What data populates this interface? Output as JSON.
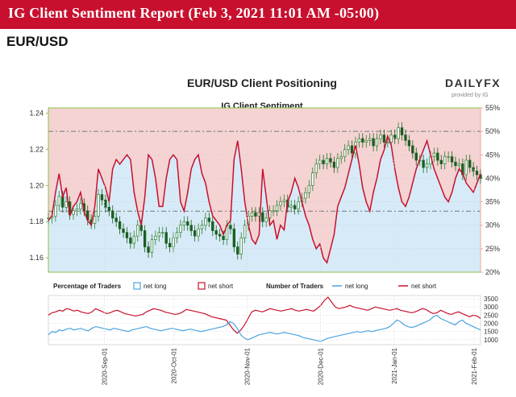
{
  "banner": {
    "title": "IG Client Sentiment Report (Feb 3, 2021 11:01 AM -05:00)",
    "color": "#c8102e"
  },
  "pair": "EUR/USD",
  "brand": {
    "logo_main": "DAILYFX",
    "logo_sub": "provided by IG"
  },
  "chart_data": [
    {
      "type": "line",
      "title": "EUR/USD Client Positioning",
      "subtitle": "IG Client Sentiment",
      "left_axis": {
        "ticks": [
          "1.24",
          "1.22",
          "1.20",
          "1.18",
          "1.16"
        ],
        "values": [
          1.24,
          1.22,
          1.2,
          1.18,
          1.16
        ],
        "range": [
          1.152,
          1.243
        ]
      },
      "right_axis": {
        "ticks": [
          "55%",
          "50%",
          "45%",
          "40%",
          "35%",
          "30%",
          "25%",
          "20%"
        ],
        "values": [
          55,
          50,
          45,
          40,
          35,
          30,
          25,
          20
        ],
        "range": [
          20,
          55
        ]
      },
      "x_ticks": [
        "2020-Sep-01",
        "2020-Oct-01",
        "2020-Nov-01",
        "2020-Dec-01",
        "2021-Jan-01",
        "2021-Feb-01"
      ],
      "reference_lines_pct": [
        50,
        33
      ],
      "colors": {
        "net_long": "#4aa3df",
        "net_short": "#c8102e",
        "long_fill": "#d6ebf7",
        "short_fill": "#f5d3d3",
        "candle_up": "#2e7d32",
        "candle_down": "#1b5e20"
      },
      "series": [
        {
          "name": "net short",
          "unit": "%",
          "values": [
            31,
            32,
            37,
            41,
            36,
            38,
            32,
            34,
            35,
            37,
            33,
            31,
            30,
            34,
            42,
            40,
            38,
            35,
            42,
            44,
            43,
            44,
            45,
            44,
            37,
            33,
            30,
            36,
            45,
            44,
            40,
            34,
            34,
            40,
            44,
            45,
            44,
            35,
            33,
            37,
            42,
            44,
            45,
            41,
            39,
            35,
            32,
            31,
            30,
            28,
            30,
            31,
            44,
            48,
            42,
            35,
            30,
            27,
            26,
            28,
            42,
            36,
            30,
            31,
            27,
            30,
            29,
            35,
            37,
            40,
            38,
            35,
            32,
            30,
            27,
            25,
            26,
            23,
            22,
            25,
            28,
            34,
            36,
            38,
            41,
            44,
            47,
            43,
            38,
            35,
            33,
            37,
            40,
            44,
            46,
            49,
            47,
            42,
            38,
            35,
            34,
            36,
            39,
            42,
            44,
            46,
            48,
            45,
            42,
            40,
            38,
            36,
            35,
            37,
            40,
            42,
            41,
            39,
            38,
            37,
            39,
            41
          ]
        },
        {
          "name": "price",
          "unit": "EUR/USD",
          "values": [
            1.182,
            1.183,
            1.189,
            1.194,
            1.188,
            1.191,
            1.184,
            1.186,
            1.187,
            1.19,
            1.186,
            1.181,
            1.179,
            1.183,
            1.195,
            1.192,
            1.188,
            1.186,
            1.182,
            1.18,
            1.176,
            1.174,
            1.171,
            1.168,
            1.172,
            1.178,
            1.175,
            1.166,
            1.163,
            1.17,
            1.172,
            1.174,
            1.174,
            1.168,
            1.166,
            1.171,
            1.174,
            1.178,
            1.18,
            1.178,
            1.175,
            1.172,
            1.176,
            1.178,
            1.182,
            1.18,
            1.175,
            1.173,
            1.172,
            1.17,
            1.178,
            1.176,
            1.166,
            1.162,
            1.171,
            1.178,
            1.183,
            1.185,
            1.183,
            1.185,
            1.18,
            1.182,
            1.186,
            1.186,
            1.189,
            1.191,
            1.192,
            1.188,
            1.189,
            1.187,
            1.191,
            1.193,
            1.196,
            1.2,
            1.207,
            1.212,
            1.214,
            1.212,
            1.215,
            1.213,
            1.21,
            1.215,
            1.216,
            1.22,
            1.222,
            1.218,
            1.224,
            1.226,
            1.224,
            1.225,
            1.226,
            1.222,
            1.226,
            1.228,
            1.224,
            1.224,
            1.228,
            1.226,
            1.232,
            1.228,
            1.225,
            1.222,
            1.218,
            1.214,
            1.214,
            1.21,
            1.212,
            1.216,
            1.218,
            1.214,
            1.212,
            1.216,
            1.216,
            1.213,
            1.211,
            1.212,
            1.206,
            1.214,
            1.21,
            1.208,
            1.206,
            1.204
          ]
        }
      ]
    },
    {
      "type": "line",
      "title": "Percentage of Traders",
      "legend": [
        "net long",
        "net short"
      ],
      "number_legend_title": "Number of Traders",
      "ticks": [
        "3500",
        "3000",
        "2500",
        "2000",
        "1500",
        "1000"
      ],
      "tick_values": [
        3500,
        3000,
        2500,
        2000,
        1500,
        1000
      ],
      "range": [
        700,
        3700
      ],
      "series": [
        {
          "name": "net short",
          "values": [
            2500,
            2650,
            2700,
            2800,
            2750,
            2900,
            2850,
            2750,
            2800,
            2700,
            2650,
            2600,
            2700,
            2900,
            2800,
            2700,
            2600,
            2650,
            2750,
            2800,
            2700,
            2600,
            2550,
            2500,
            2450,
            2500,
            2550,
            2700,
            2800,
            2900,
            2850,
            2800,
            2700,
            2650,
            2600,
            2550,
            2600,
            2700,
            2850,
            2800,
            2750,
            2700,
            2650,
            2600,
            2500,
            2400,
            2350,
            2300,
            2250,
            2200,
            1900,
            1600,
            1400,
            1600,
            1900,
            2300,
            2700,
            2800,
            2750,
            2700,
            2800,
            2900,
            2850,
            2800,
            2750,
            2800,
            2850,
            2900,
            2800,
            2750,
            2800,
            2850,
            2800,
            2750,
            2900,
            3100,
            3400,
            3600,
            3300,
            3000,
            2900,
            2950,
            3000,
            3100,
            3000,
            2950,
            2900,
            2850,
            2800,
            2900,
            3000,
            2950,
            2900,
            2850,
            2800,
            2850,
            2900,
            2800,
            2750,
            2700,
            2650,
            2700,
            2800,
            2900,
            2850,
            2700,
            2600,
            2650,
            2800,
            2700,
            2600,
            2550,
            2650,
            2700,
            2600,
            2500,
            2400,
            2500,
            2450,
            2300
          ]
        },
        {
          "name": "net long",
          "values": [
            1300,
            1500,
            1450,
            1600,
            1550,
            1650,
            1700,
            1600,
            1650,
            1700,
            1600,
            1550,
            1700,
            1800,
            1750,
            1700,
            1650,
            1600,
            1700,
            1650,
            1600,
            1550,
            1500,
            1600,
            1650,
            1700,
            1750,
            1800,
            1700,
            1650,
            1600,
            1550,
            1600,
            1650,
            1700,
            1650,
            1600,
            1550,
            1600,
            1650,
            1600,
            1550,
            1500,
            1550,
            1600,
            1650,
            1700,
            1750,
            1800,
            1900,
            2100,
            2000,
            1700,
            1300,
            1100,
            1000,
            1100,
            1200,
            1300,
            1350,
            1400,
            1450,
            1400,
            1350,
            1400,
            1450,
            1400,
            1350,
            1300,
            1250,
            1150,
            1100,
            1050,
            1000,
            950,
            900,
            1000,
            1100,
            1150,
            1200,
            1250,
            1300,
            1350,
            1400,
            1450,
            1500,
            1450,
            1500,
            1550,
            1500,
            1550,
            1600,
            1650,
            1700,
            1800,
            2000,
            2200,
            2100,
            1900,
            1800,
            1750,
            1800,
            1900,
            2000,
            2100,
            2200,
            2400,
            2500,
            2300,
            2200,
            2100,
            2000,
            1900,
            2100,
            2200,
            2000,
            1900,
            1800,
            1700,
            1600
          ]
        }
      ]
    }
  ]
}
